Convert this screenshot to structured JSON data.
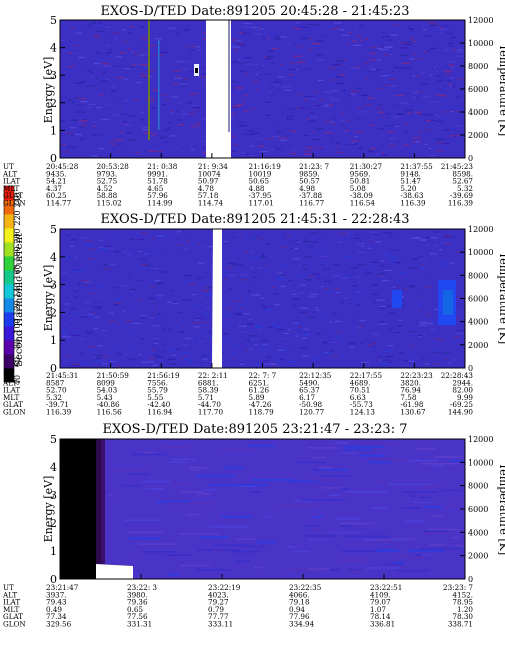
{
  "colorbar": {
    "label": "Second Harmonic Current",
    "ticks": [
      "40",
      "60",
      "80",
      "100",
      "120",
      "140",
      "160",
      "180",
      "200",
      "220",
      "240"
    ],
    "colors": [
      "#000000",
      "#3c0068",
      "#5a00aa",
      "#3a16d6",
      "#1f3bf0",
      "#1489e8",
      "#11c7d8",
      "#14c88c",
      "#2fd23a",
      "#9fe022",
      "#f4f01a",
      "#f5b414",
      "#f06a0c",
      "#e81b0a"
    ]
  },
  "chart_data": [
    {
      "type": "heatmap",
      "title": "EXOS-D/TED   Date:891205  20:45:28 - 21:45:23",
      "ylabel": "Energy [eV]",
      "ylabel_right": "Temperature [K]",
      "ylim": [
        0,
        5
      ],
      "ylim_right": [
        0,
        12000
      ],
      "yticks": [
        0,
        1,
        2,
        3,
        4,
        5
      ],
      "yticks_right": [
        0,
        2000,
        4000,
        6000,
        8000,
        10000,
        12000
      ],
      "table": {
        "row_labels": [
          "UT",
          "ALT",
          "ILAT",
          "MLT",
          "GLAT",
          "GLON"
        ],
        "columns": [
          [
            "20:45:28",
            "9435.",
            "54.21",
            "4.37",
            "60.25",
            "114.77"
          ],
          [
            "20:53:28",
            "9793.",
            "52.75",
            "4.52",
            "58.88",
            "115.02"
          ],
          [
            "21: 0:38",
            "9991.",
            "51.78",
            "4.65",
            "57.96",
            "114.99"
          ],
          [
            "21: 9:34",
            "10074",
            "50.97",
            "4.78",
            "57.18",
            "114.74"
          ],
          [
            "21:16:19",
            "10019",
            "50.65",
            "4.88",
            "-37.95",
            "117.01"
          ],
          [
            "21:23: 7",
            "9859.",
            "50.57",
            "4.98",
            "-37.88",
            "116.77"
          ],
          [
            "21:30:27",
            "9569.",
            "50.81",
            "5.08",
            "-38.09",
            "116.54"
          ],
          [
            "21:37:55",
            "9148.",
            "51.47",
            "5.20",
            "-38.63",
            "116.39"
          ],
          [
            "21:45:23",
            "8598.",
            "52.67",
            "5.32",
            "-39.69",
            "116.39"
          ]
        ]
      }
    },
    {
      "type": "heatmap",
      "title": "EXOS-D/TED   Date:891205  21:45:31 - 22:28:43",
      "ylabel": "Energy [eV]",
      "ylabel_right": "Temperature [K]",
      "ylim": [
        0,
        5
      ],
      "ylim_right": [
        0,
        12000
      ],
      "yticks": [
        0,
        1,
        2,
        3,
        4,
        5
      ],
      "yticks_right": [
        0,
        2000,
        4000,
        6000,
        8000,
        10000,
        12000
      ],
      "table": {
        "row_labels": [
          "UT",
          "ALT",
          "ILAT",
          "MLT",
          "GLAT",
          "GLON"
        ],
        "columns": [
          [
            "21:45:31",
            "8587",
            "52.70",
            "5.32",
            "-39.71",
            "116.39"
          ],
          [
            "21:50:59",
            "8099",
            "54.03",
            "5.43",
            "-40.86",
            "116.56"
          ],
          [
            "21:56:19",
            "7556.",
            "55.79",
            "5.55",
            "-42.40",
            "116.94"
          ],
          [
            "22: 2:11",
            "6881.",
            "58.39",
            "5.71",
            "-44.70",
            "117.70"
          ],
          [
            "22: 7: 7",
            "6251.",
            "61.26",
            "5.89",
            "-47.26",
            "118.79"
          ],
          [
            "22:12:35",
            "5490.",
            "65.37",
            "6.17",
            "-50.98",
            "120.77"
          ],
          [
            "22:17:55",
            "4689.",
            "70.51",
            "6.63",
            "-55.73",
            "124.13"
          ],
          [
            "22:23:23",
            "3820.",
            "76.94",
            "7.58",
            "-61.98",
            "130.67"
          ],
          [
            "22:28:43",
            "2944.",
            "82.00",
            "9.99",
            "-69.25",
            "144.90"
          ]
        ]
      }
    },
    {
      "type": "heatmap",
      "title": "EXOS-D/TED   Date:891205  23:21:47 - 23:23: 7",
      "ylabel": "Energy [eV]",
      "ylabel_right": "Temperature [K]",
      "ylim": [
        0,
        5
      ],
      "ylim_right": [
        0,
        12000
      ],
      "yticks": [
        0,
        1,
        2,
        3,
        4,
        5
      ],
      "yticks_right": [
        0,
        2000,
        4000,
        6000,
        8000,
        10000,
        12000
      ],
      "table": {
        "row_labels": [
          "UT",
          "ALT",
          "ILAT",
          "MLT",
          "GLAT",
          "GLON"
        ],
        "columns": [
          [
            "23:21:47",
            "3937.",
            "79.43",
            "0.49",
            "77.34",
            "329.56"
          ],
          [
            "23:22: 3",
            "3980.",
            "79.36",
            "0.65",
            "77.56",
            "331.31"
          ],
          [
            "23:22:19",
            "4023.",
            "79.27",
            "0.79",
            "77.77",
            "333.11"
          ],
          [
            "23:22:35",
            "4066.",
            "79.18",
            "0.94",
            "77.96",
            "334.94"
          ],
          [
            "23:22:51",
            "4109.",
            "79.07",
            "1.07",
            "78.14",
            "336.81"
          ],
          [
            "23:23: 7",
            "4152.",
            "78.95",
            "1.20",
            "78.30",
            "338.71"
          ]
        ]
      }
    }
  ]
}
